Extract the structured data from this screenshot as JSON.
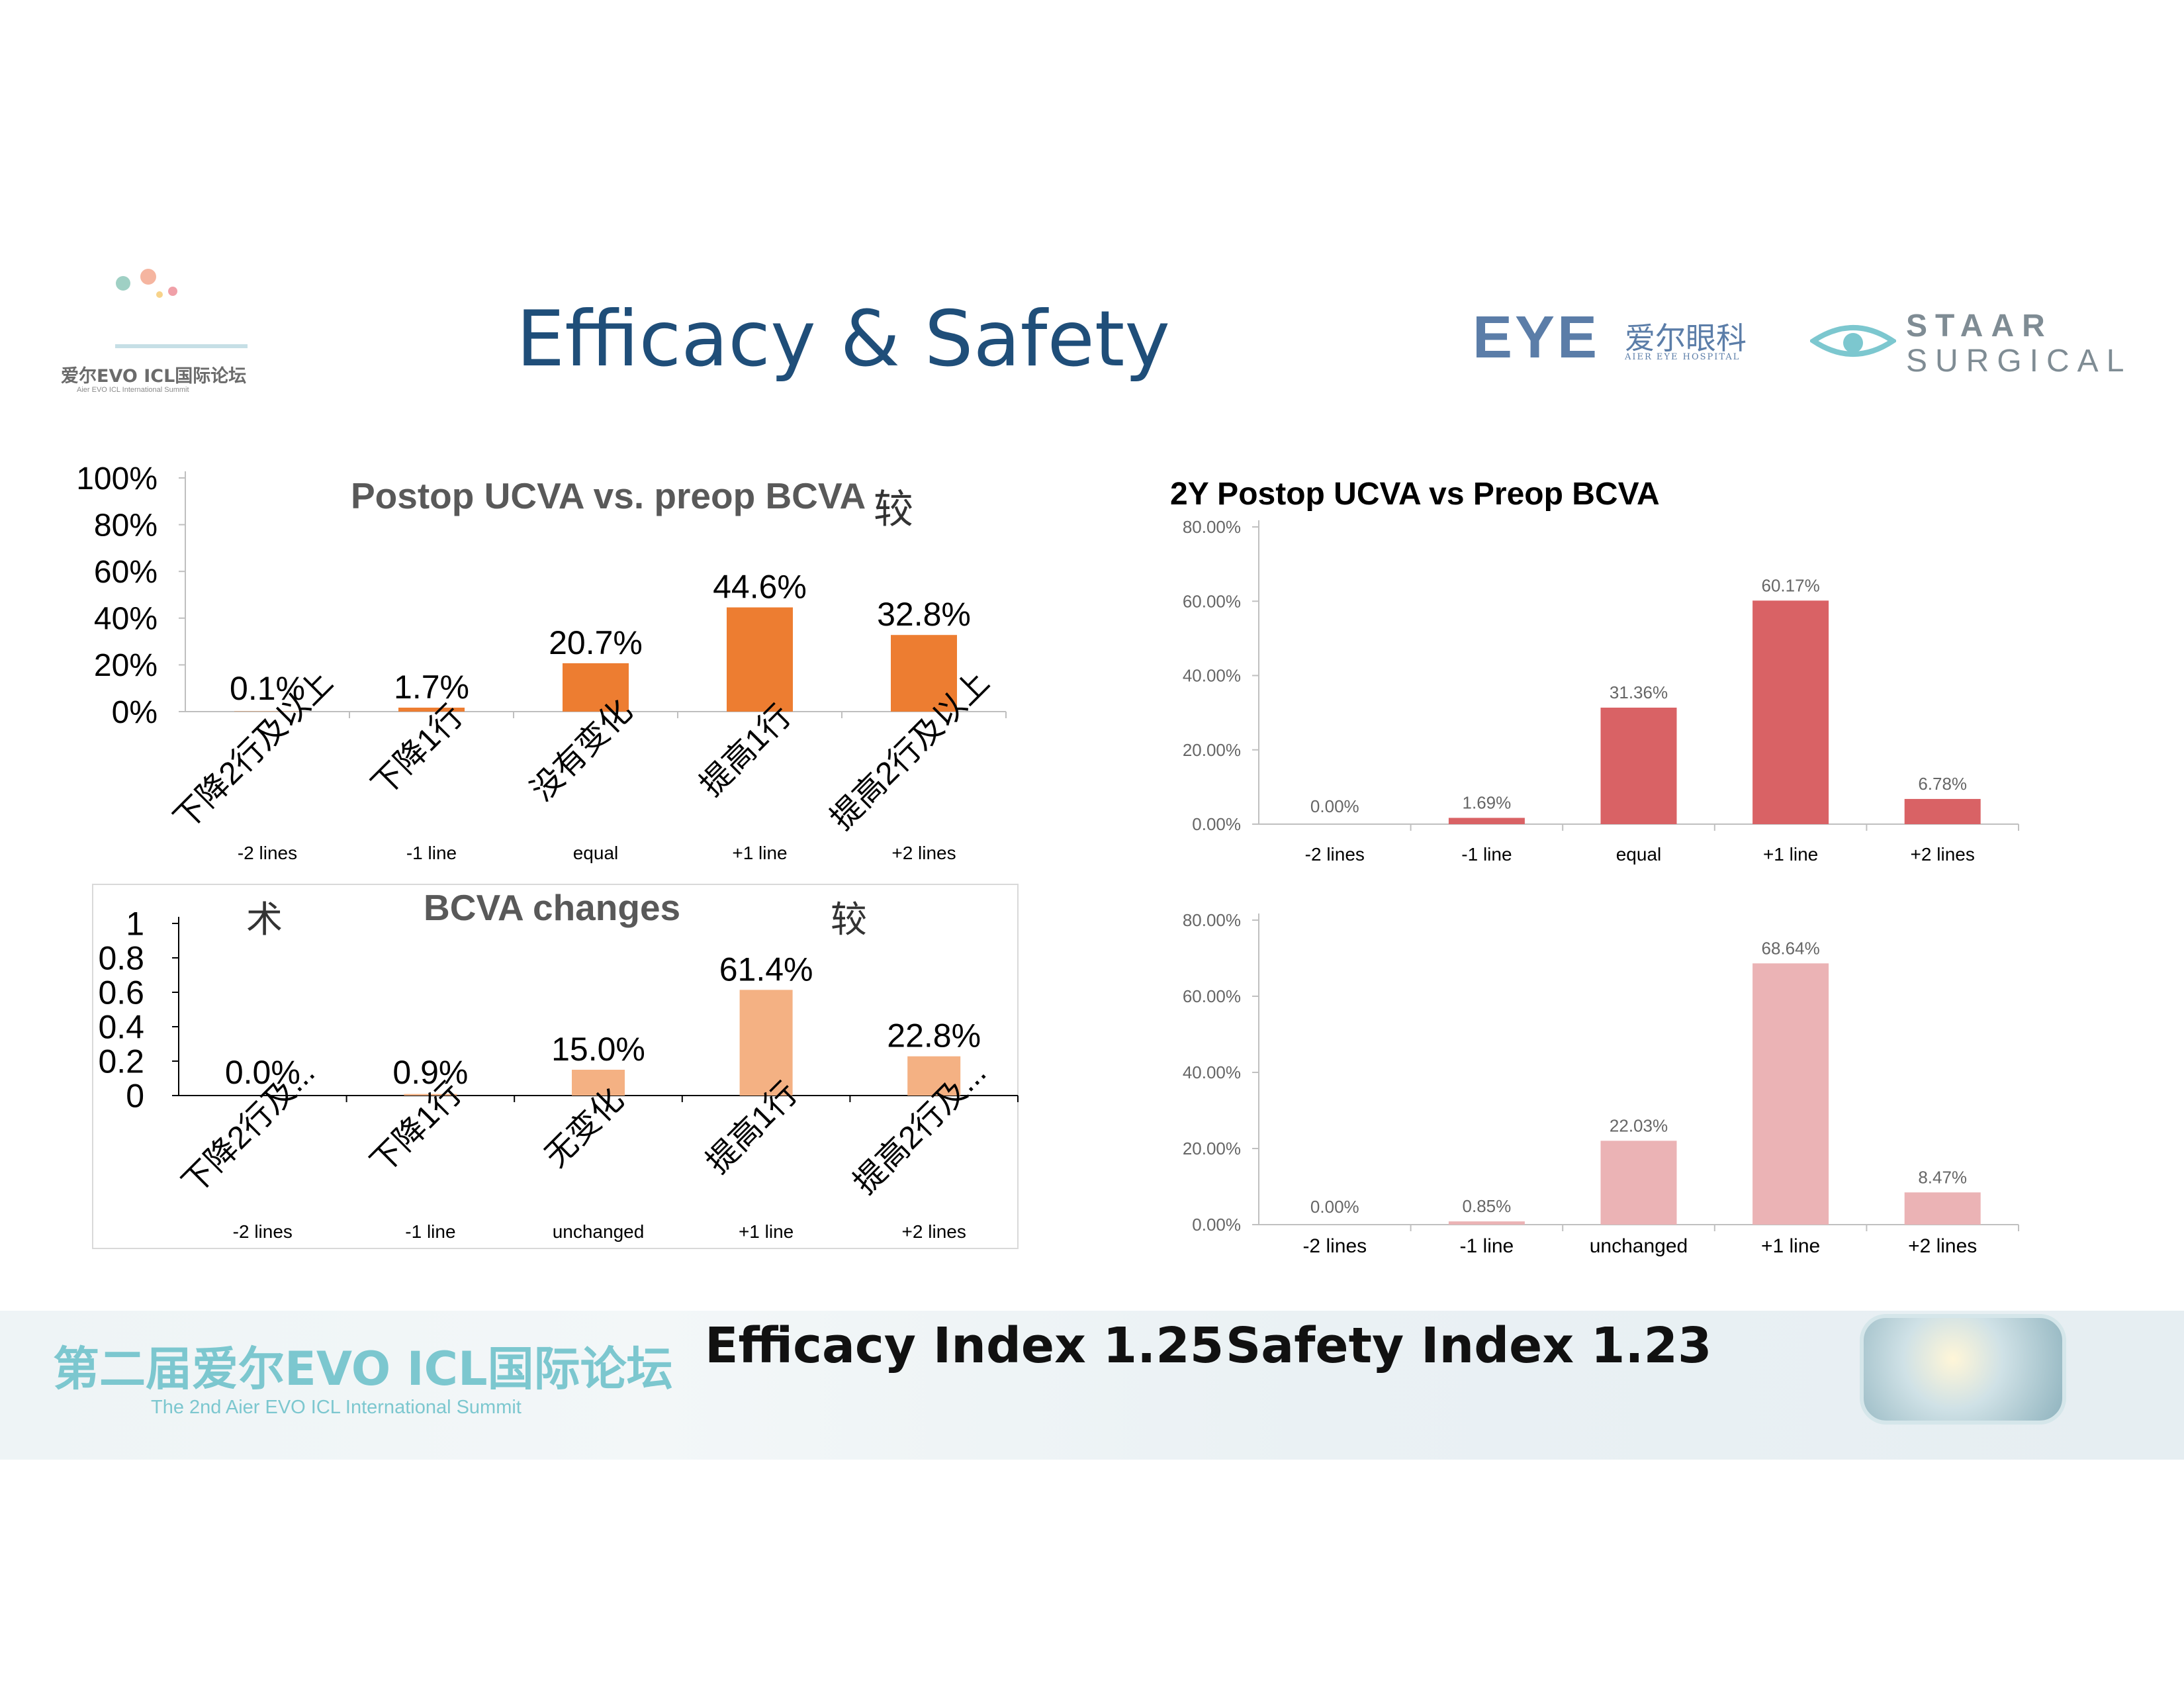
{
  "header": {
    "title": "Efficacy & Safety",
    "forum_logo_cn": "爱尔EVO ICL国际论坛",
    "forum_logo_en": "Aier EVO ICL International Summit",
    "aier_logo_mark": "EYE",
    "aier_logo_cn": "爱尔眼科",
    "aier_logo_en": "AIER EYE HOSPITAL",
    "staar_line1": "STAAR",
    "staar_line2": "SURGICAL"
  },
  "footer": {
    "banner_cn": "第二届爱尔EVO ICL国际论坛",
    "banner_en": "The 2nd Aier EVO ICL International Summit",
    "efficacy_index": "Efficacy Index 1.25",
    "safety_index": "Safety Index 1.23"
  },
  "colors": {
    "title": "#1f4e79",
    "orange": "#ed7d31",
    "light_orange": "#f4b183",
    "red": "#d96265",
    "pink": "#ebb3b5",
    "teal": "#7cc7cf"
  },
  "chart_data": [
    {
      "type": "bar",
      "title": "Postop UCVA vs. preop BCVA",
      "title_overlap_text": "较",
      "categories": [
        "下降2行及以上",
        "下降1行",
        "没有变化",
        "提高1行",
        "提高2行及以上"
      ],
      "category_notes": [
        "-2 lines",
        "-1 line",
        "equal",
        "+1 line",
        "+2 lines"
      ],
      "values": [
        0.1,
        1.7,
        20.7,
        44.6,
        32.8
      ],
      "data_labels": [
        "0.1%",
        "1.7%",
        "20.7%",
        "44.6%",
        "32.8%"
      ],
      "y_ticks": [
        "0%",
        "20%",
        "40%",
        "60%",
        "80%",
        "100%"
      ],
      "ylim": [
        0,
        100
      ],
      "color": "#ed7d31"
    },
    {
      "type": "bar",
      "title": "2Y  Postop UCVA vs Preop BCVA",
      "categories": [
        "-2 lines",
        "-1 line",
        "equal",
        "+1 line",
        "+2 lines"
      ],
      "values": [
        0.0,
        1.69,
        31.36,
        60.17,
        6.78
      ],
      "data_labels": [
        "0.00%",
        "1.69%",
        "31.36%",
        "60.17%",
        "6.78%"
      ],
      "y_ticks": [
        "0.00%",
        "20.00%",
        "40.00%",
        "60.00%",
        "80.00%"
      ],
      "ylim": [
        0,
        80
      ],
      "color": "#d96265"
    },
    {
      "type": "bar",
      "title": "BCVA changes",
      "title_overlap_text": "术",
      "title_overlap_text_2": "较",
      "categories": [
        "下降2行及...",
        "下降1行",
        "无变化",
        "提高1行",
        "提高2行及..."
      ],
      "category_notes": [
        "-2 lines",
        "-1 line",
        "unchanged",
        "+1 line",
        "+2 lines"
      ],
      "values": [
        0.0,
        0.9,
        15.0,
        61.4,
        22.8
      ],
      "data_labels": [
        "0.0%",
        "0.9%",
        "15.0%",
        "61.4%",
        "22.8%"
      ],
      "y_ticks": [
        "0",
        "0.2",
        "0.4",
        "0.6",
        "0.8",
        "1"
      ],
      "ylim": [
        0,
        100
      ],
      "color": "#f4b183"
    },
    {
      "type": "bar",
      "title": "",
      "categories": [
        "-2 lines",
        "-1 line",
        "unchanged",
        "+1 line",
        "+2 lines"
      ],
      "values": [
        0.0,
        0.85,
        22.03,
        68.64,
        8.47
      ],
      "data_labels": [
        "0.00%",
        "0.85%",
        "22.03%",
        "68.64%",
        "8.47%"
      ],
      "y_ticks": [
        "0.00%",
        "20.00%",
        "40.00%",
        "60.00%",
        "80.00%"
      ],
      "ylim": [
        0,
        80
      ],
      "color": "#ebb3b5"
    }
  ]
}
